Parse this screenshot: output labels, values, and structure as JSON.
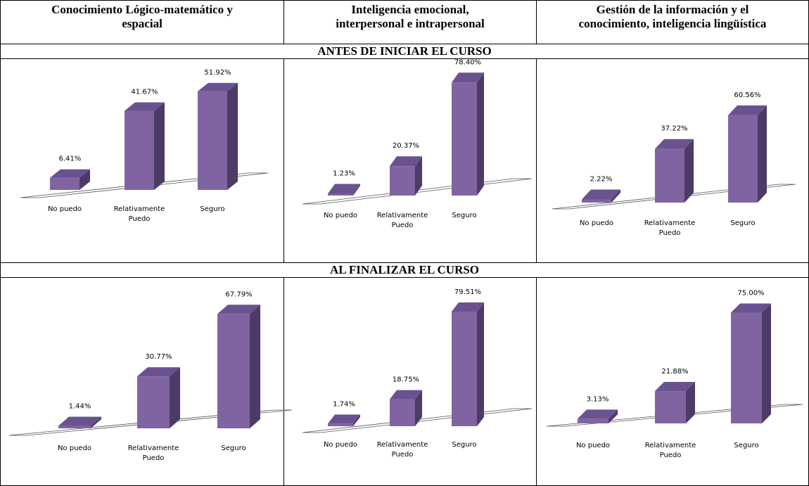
{
  "header": {
    "col1": [
      "Conocimiento Lógico-matemático y",
      "espacial"
    ],
    "col2": [
      "Inteligencia emocional,",
      "interpersonal e intrapersonal"
    ],
    "col3": [
      "Gestión de la información y el",
      "conocimiento, inteligencia lingüística"
    ]
  },
  "sections": {
    "before": "ANTES DE INICIAR EL CURSO",
    "after": "AL FINALIZAR EL CURSO"
  },
  "colors": {
    "front": "#8064a2",
    "side": "#4e3a66",
    "top": "#6a5290"
  },
  "chart_data": [
    {
      "type": "bar",
      "categories": [
        "No puedo",
        [
          "Relativamente",
          "Puedo"
        ],
        "Seguro"
      ],
      "values": [
        6.41,
        41.67,
        51.92
      ],
      "labels": [
        "6.41%",
        "41.67%",
        "51.92%"
      ]
    },
    {
      "type": "bar",
      "categories": [
        "No puedo",
        [
          "Relativamente",
          "Puedo"
        ],
        "Seguro"
      ],
      "values": [
        1.23,
        20.37,
        78.4
      ],
      "labels": [
        "1.23%",
        "20.37%",
        "78.40%"
      ]
    },
    {
      "type": "bar",
      "categories": [
        "No puedo",
        [
          "Relativamente",
          "Puedo"
        ],
        "Seguro"
      ],
      "values": [
        2.22,
        37.22,
        60.56
      ],
      "labels": [
        "2.22%",
        "37.22%",
        "60.56%"
      ]
    },
    {
      "type": "bar",
      "categories": [
        "No puedo",
        [
          "Relativamente",
          "Puedo"
        ],
        "Seguro"
      ],
      "values": [
        1.44,
        30.77,
        67.79
      ],
      "labels": [
        "1.44%",
        "30.77%",
        "67.79%"
      ]
    },
    {
      "type": "bar",
      "categories": [
        "No puedo",
        [
          "Relativamente",
          "Puedo"
        ],
        "Seguro"
      ],
      "values": [
        1.74,
        18.75,
        79.51
      ],
      "labels": [
        "1.74%",
        "18.75%",
        "79.51%"
      ]
    },
    {
      "type": "bar",
      "categories": [
        "No puedo",
        [
          "Relativamente",
          "Puedo"
        ],
        "Seguro"
      ],
      "values": [
        3.13,
        21.88,
        75.0
      ],
      "labels": [
        "3.13%",
        "21.88%",
        "75.00%"
      ]
    }
  ]
}
